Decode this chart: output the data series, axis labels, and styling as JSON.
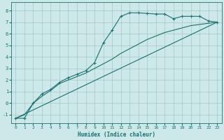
{
  "xlabel": "Humidex (Indice chaleur)",
  "bg_color": "#cce8e8",
  "grid_color": "#9bbfbf",
  "line_color": "#1a7070",
  "xlim": [
    -0.5,
    23.5
  ],
  "ylim": [
    -1.7,
    8.7
  ],
  "xticks": [
    0,
    1,
    2,
    3,
    4,
    5,
    6,
    7,
    8,
    9,
    10,
    11,
    12,
    13,
    14,
    15,
    16,
    17,
    18,
    19,
    20,
    21,
    22,
    23
  ],
  "yticks": [
    -1,
    0,
    1,
    2,
    3,
    4,
    5,
    6,
    7,
    8
  ],
  "line1_x": [
    0,
    1,
    2,
    3,
    4,
    5,
    6,
    7,
    8,
    9,
    10,
    11,
    12,
    13,
    14,
    15,
    16,
    17,
    18,
    19,
    20,
    21,
    22,
    23
  ],
  "line1_y": [
    -1.3,
    -1.3,
    0.0,
    0.8,
    1.2,
    1.8,
    2.2,
    2.5,
    2.8,
    3.5,
    5.2,
    6.3,
    7.5,
    7.8,
    7.8,
    7.75,
    7.7,
    7.7,
    7.3,
    7.5,
    7.5,
    7.5,
    7.1,
    7.0
  ],
  "line2_x": [
    0,
    23
  ],
  "line2_y": [
    -1.3,
    7.0
  ],
  "line3_x": [
    0,
    1,
    2,
    3,
    4,
    5,
    6,
    7,
    8,
    9,
    10,
    11,
    12,
    13,
    14,
    15,
    16,
    17,
    18,
    19,
    20,
    21,
    22,
    23
  ],
  "line3_y": [
    -1.3,
    -1.0,
    0.0,
    0.6,
    1.1,
    1.7,
    2.0,
    2.3,
    2.6,
    3.0,
    3.4,
    3.8,
    4.3,
    4.7,
    5.1,
    5.5,
    5.8,
    6.1,
    6.3,
    6.5,
    6.7,
    6.8,
    6.9,
    7.0
  ]
}
